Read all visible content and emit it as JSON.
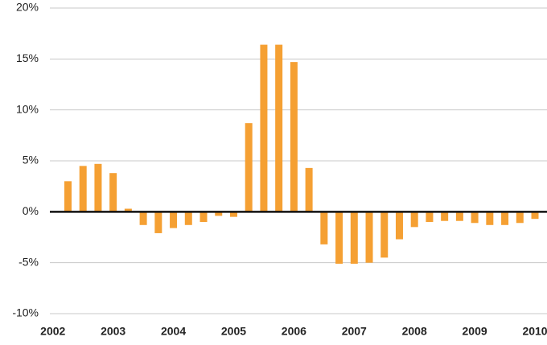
{
  "chart_data": {
    "type": "bar",
    "x": [
      2002.25,
      2002.5,
      2002.75,
      2003,
      2003.25,
      2003.5,
      2003.75,
      2004,
      2004.25,
      2004.5,
      2004.75,
      2005,
      2005.25,
      2005.5,
      2005.75,
      2006,
      2006.25,
      2006.5,
      2006.75,
      2007,
      2007.25,
      2007.5,
      2007.75,
      2008,
      2008.25,
      2008.5,
      2008.75,
      2009,
      2009.25,
      2009.5,
      2009.75,
      2010
    ],
    "values": [
      3.0,
      4.5,
      4.7,
      3.8,
      0.3,
      -1.3,
      -2.1,
      -1.6,
      -1.3,
      -1.0,
      -0.4,
      -0.5,
      8.7,
      16.4,
      16.4,
      14.7,
      4.3,
      -3.2,
      -5.1,
      -5.1,
      -5.0,
      -4.5,
      -2.7,
      -1.5,
      -1.0,
      -0.9,
      -0.9,
      -1.1,
      -1.3,
      -1.3,
      -1.1,
      -0.7
    ],
    "color": "#f5a033",
    "xlim": [
      2001.95,
      2010.2
    ],
    "xticks": [
      2002,
      2003,
      2004,
      2005,
      2006,
      2007,
      2008,
      2009,
      2010
    ],
    "ylim": [
      -10,
      20
    ],
    "yticks": [
      {
        "value": -10,
        "label": "-10%"
      },
      {
        "value": -5,
        "label": "-5%"
      },
      {
        "value": 0,
        "label": "0%"
      },
      {
        "value": 5,
        "label": "5%"
      },
      {
        "value": 10,
        "label": "10%"
      },
      {
        "value": 15,
        "label": "15%"
      },
      {
        "value": 20,
        "label": "20%"
      }
    ],
    "grid": true
  }
}
